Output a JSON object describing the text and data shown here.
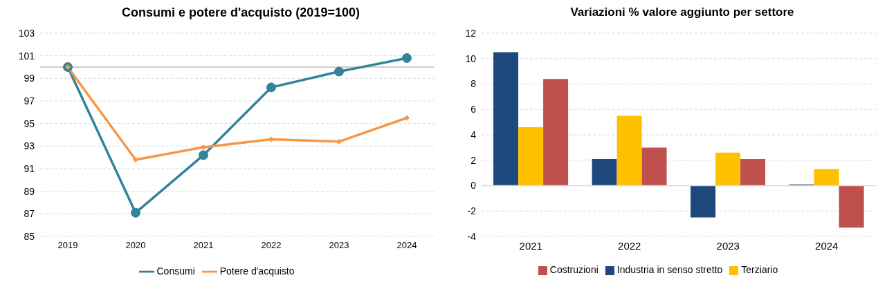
{
  "chart_data": [
    {
      "type": "line",
      "title": "Consumi e potere d'acquisto  (2019=100)",
      "categories": [
        "2019",
        "2020",
        "2021",
        "2022",
        "2023",
        "2024"
      ],
      "series": [
        {
          "name": "Consumi",
          "color": "#31849b",
          "marker": "circle",
          "values": [
            100,
            87.1,
            92.2,
            98.2,
            99.6,
            100.8
          ]
        },
        {
          "name": "Potere d'acquisto",
          "color": "#f79646",
          "marker": "diamond",
          "values": [
            100,
            91.8,
            92.9,
            93.6,
            93.4,
            95.5
          ]
        }
      ],
      "ylim": [
        85,
        103
      ],
      "yticks": [
        85,
        87,
        89,
        91,
        93,
        95,
        97,
        99,
        101,
        103
      ],
      "grid": "y",
      "legend": "bottom",
      "ref_lines": [
        {
          "axis": "y",
          "value": 100,
          "color": "#bfbfbf"
        }
      ]
    },
    {
      "type": "bar",
      "title": "Variazioni % valore aggiunto per settore",
      "categories": [
        "2021",
        "2022",
        "2023",
        "2024"
      ],
      "series": [
        {
          "name": "Industria in senso stretto",
          "color": "#1f497d",
          "values": [
            10.5,
            2.1,
            -2.5,
            0.1
          ]
        },
        {
          "name": "Terziario",
          "color": "#ffc000",
          "values": [
            4.6,
            5.5,
            2.6,
            1.3
          ]
        },
        {
          "name": "Costruzioni",
          "color": "#c0504d",
          "values": [
            8.4,
            3.0,
            2.1,
            -3.3
          ]
        }
      ],
      "ylim": [
        -4,
        12
      ],
      "yticks": [
        -4,
        -2,
        0,
        2,
        4,
        6,
        8,
        10,
        12
      ],
      "grid": "y",
      "legend": "bottom",
      "ref_lines": [
        {
          "axis": "y",
          "value": 0,
          "color": "#d9d9d9"
        }
      ]
    }
  ]
}
